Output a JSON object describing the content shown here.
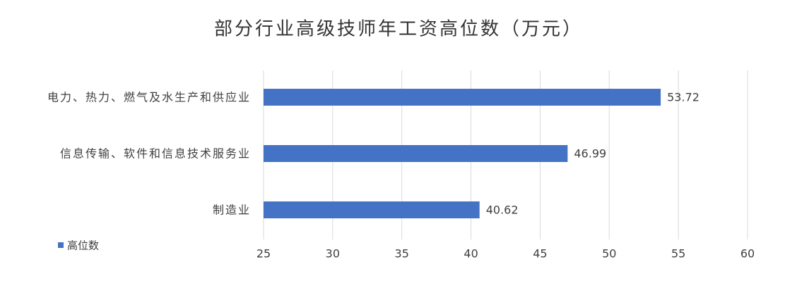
{
  "chart_data": {
    "type": "bar",
    "orientation": "horizontal",
    "title": "部分行业高级技师年工资高位数（万元）",
    "categories": [
      "电力、热力、燃气及水生产和供应业",
      "信息传输、软件和信息技术服务业",
      "制造业"
    ],
    "series": [
      {
        "name": "高位数",
        "color": "#4472c4",
        "values": [
          53.72,
          46.99,
          40.62
        ]
      }
    ],
    "xlim": [
      25,
      60
    ],
    "xticks": [
      25,
      30,
      35,
      40,
      45,
      50,
      55,
      60
    ],
    "grid": true,
    "legend": "bottom-left"
  }
}
